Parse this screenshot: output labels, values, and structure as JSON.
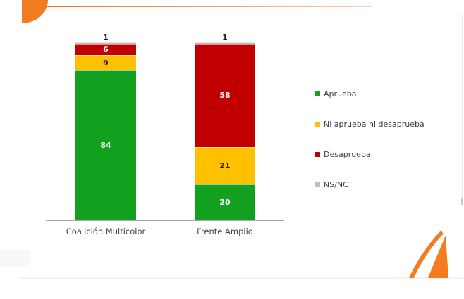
{
  "page": {
    "background": "#ffffff",
    "accent_color": "#F47C20",
    "top_line_start_color": "#ED7425",
    "top_line_end_color": "#F8CEB2"
  },
  "chart_data": {
    "type": "bar",
    "subtype": "stacked-column-100",
    "title": "",
    "categories": [
      "Coalición Multicolor",
      "Frente Amplio"
    ],
    "series": [
      {
        "name": "Aprueba",
        "values": [
          84,
          20
        ],
        "color": "#12A01E",
        "label_color": "#ffffff"
      },
      {
        "name": "Ni aprueba ni desaprueba",
        "values": [
          9,
          21
        ],
        "color": "#FFC000",
        "label_color": "#1a1a1a"
      },
      {
        "name": "Desaprueba",
        "values": [
          6,
          58
        ],
        "color": "#C00000",
        "label_color": "#ffffff"
      },
      {
        "name": "NS/NC",
        "values": [
          1,
          1
        ],
        "color": "#BFBFBF",
        "label_color": "#1a1a1a"
      }
    ],
    "stack_total": 100,
    "data_labels": true,
    "grid": false,
    "legend_position": "right",
    "axis_color": "#a6a6a6"
  }
}
